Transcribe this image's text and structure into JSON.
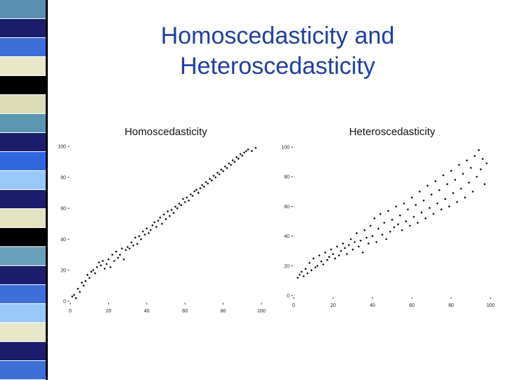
{
  "slide": {
    "title_line1": "Homoscedasticity and",
    "title_line2": "Heteroscedasticity",
    "title_color": "#1f3f9f",
    "stripe_colors": [
      "#5b8fb0",
      "#1b1e6b",
      "#3d6fd6",
      "#e8e8c8",
      "#000000",
      "#dcdcb8",
      "#5b97b1",
      "#1b1e6b",
      "#2f67e0",
      "#99c8f8",
      "#1b1e6b",
      "#e3e3c1",
      "#000000",
      "#6aa0b8",
      "#1b1e6b",
      "#3d6fd6",
      "#99c8f8",
      "#e8e8c8",
      "#1b1e6b",
      "#3d6fd6"
    ]
  },
  "chart_data": [
    {
      "type": "scatter",
      "title": "Homoscedasticity",
      "xlim": [
        0,
        100
      ],
      "ylim": [
        0,
        100
      ],
      "xticks": [
        0,
        20,
        40,
        60,
        80,
        100
      ],
      "yticks": [
        0,
        20,
        40,
        60,
        80,
        100
      ],
      "grid": false,
      "x": [
        1,
        2,
        3,
        4,
        5,
        6,
        7,
        8,
        9,
        10,
        11,
        12,
        13,
        14,
        15,
        16,
        17,
        18,
        19,
        20,
        21,
        22,
        23,
        24,
        25,
        26,
        27,
        28,
        29,
        30,
        31,
        32,
        33,
        34,
        35,
        36,
        37,
        38,
        39,
        40,
        41,
        42,
        43,
        44,
        45,
        46,
        47,
        48,
        49,
        50,
        51,
        52,
        53,
        54,
        55,
        56,
        57,
        58,
        59,
        60,
        61,
        62,
        63,
        64,
        65,
        66,
        67,
        68,
        69,
        70,
        71,
        72,
        73,
        74,
        75,
        76,
        77,
        78,
        79,
        80,
        81,
        82,
        83,
        84,
        85,
        86,
        87,
        88,
        89,
        90,
        91,
        92,
        93,
        95,
        97
      ],
      "y": [
        3,
        4,
        2,
        8,
        6,
        12,
        10,
        13,
        17,
        15,
        19,
        20,
        18,
        22,
        25,
        23,
        26,
        21,
        24,
        27,
        22,
        30,
        26,
        32,
        28,
        30,
        34,
        27,
        33,
        35,
        34,
        38,
        36,
        41,
        37,
        42,
        40,
        45,
        43,
        47,
        44,
        46,
        49,
        51,
        48,
        52,
        54,
        50,
        56,
        53,
        58,
        55,
        59,
        57,
        61,
        60,
        63,
        62,
        66,
        64,
        67,
        65,
        69,
        68,
        71,
        72,
        70,
        73,
        75,
        74,
        77,
        76,
        79,
        78,
        81,
        80,
        83,
        82,
        85,
        84,
        87,
        86,
        89,
        88,
        91,
        90,
        93,
        92,
        95,
        94,
        96,
        97,
        98,
        97,
        99
      ]
    },
    {
      "type": "scatter",
      "title": "Heteroscedasticity",
      "xlim": [
        0,
        100
      ],
      "ylim": [
        0,
        100
      ],
      "xticks": [
        0,
        20,
        40,
        60,
        80,
        100
      ],
      "yticks": [
        0,
        20,
        40,
        60,
        80,
        100
      ],
      "grid": false,
      "x": [
        2,
        3,
        4,
        5,
        6,
        7,
        8,
        9,
        10,
        11,
        12,
        13,
        14,
        15,
        16,
        17,
        18,
        19,
        20,
        21,
        22,
        23,
        24,
        25,
        26,
        27,
        28,
        29,
        30,
        31,
        32,
        33,
        34,
        35,
        36,
        37,
        38,
        39,
        40,
        41,
        42,
        43,
        44,
        45,
        46,
        47,
        48,
        49,
        50,
        51,
        52,
        53,
        54,
        55,
        56,
        57,
        58,
        59,
        60,
        61,
        62,
        63,
        64,
        65,
        66,
        67,
        68,
        69,
        70,
        71,
        72,
        73,
        74,
        75,
        76,
        77,
        78,
        79,
        80,
        81,
        82,
        83,
        84,
        85,
        86,
        87,
        88,
        89,
        90,
        91,
        92,
        93,
        94,
        95,
        96,
        97,
        98
      ],
      "y": [
        12,
        14,
        16,
        13,
        18,
        15,
        22,
        17,
        25,
        19,
        20,
        27,
        23,
        21,
        29,
        24,
        26,
        31,
        28,
        25,
        33,
        27,
        30,
        35,
        32,
        28,
        34,
        38,
        31,
        36,
        42,
        33,
        37,
        29,
        44,
        39,
        35,
        47,
        40,
        52,
        36,
        45,
        55,
        41,
        49,
        38,
        57,
        43,
        51,
        46,
        60,
        48,
        54,
        44,
        62,
        50,
        58,
        47,
        66,
        53,
        61,
        49,
        70,
        56,
        64,
        52,
        74,
        59,
        68,
        55,
        77,
        62,
        71,
        58,
        81,
        65,
        75,
        60,
        84,
        69,
        78,
        63,
        88,
        72,
        82,
        66,
        91,
        76,
        86,
        70,
        94,
        80,
        98,
        85,
        92,
        75,
        89
      ]
    }
  ]
}
